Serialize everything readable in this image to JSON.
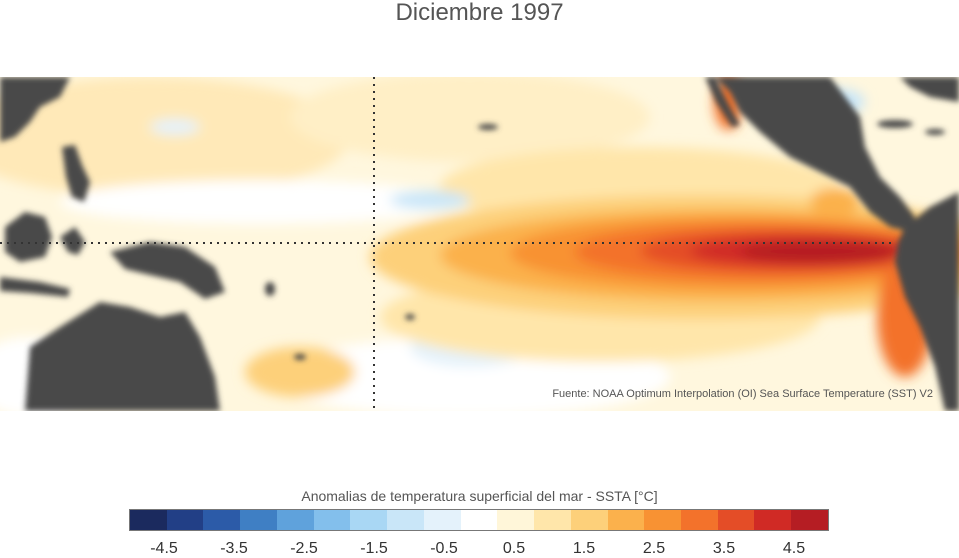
{
  "title": "Diciembre 1997",
  "source": "Fuente: NOAA Optimum Interpolation (OI) Sea Surface Temperature (SST) V2",
  "colorbar": {
    "title": "Anomalias de temperatura superficial del mar - SSTA  [°C]",
    "min": -5,
    "max": 5,
    "colors": [
      "#1b2a5e",
      "#223f86",
      "#2c5ba8",
      "#3f7fc4",
      "#5fa2dc",
      "#83bfec",
      "#a9d7f4",
      "#c9e6f8",
      "#e4f2fb",
      "#ffffff",
      "#fff6d9",
      "#ffe6aa",
      "#fdd07a",
      "#fbb14c",
      "#f89233",
      "#f3722b",
      "#e44d27",
      "#d02a25",
      "#b51d23"
    ],
    "ticks": [
      "-4.5",
      "-3.5",
      "-2.5",
      "-1.5",
      "-0.5",
      "0.5",
      "1.5",
      "2.5",
      "3.5",
      "4.5"
    ],
    "tick_values": [
      -4.5,
      -3.5,
      -2.5,
      -1.5,
      -0.5,
      0.5,
      1.5,
      2.5,
      3.5,
      4.5
    ]
  },
  "colors": {
    "land": "#4a4a4a",
    "ocean_neutral": "#ffffff",
    "reference_lines": "#333333"
  },
  "reference_lines": [
    "equator",
    "date-line-meridian"
  ]
}
